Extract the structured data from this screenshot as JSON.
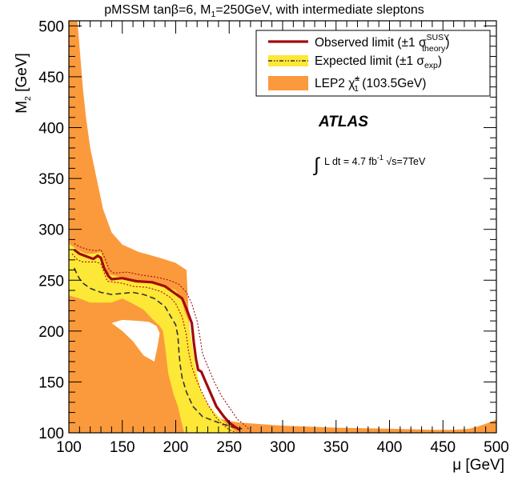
{
  "chart_data": {
    "type": "area",
    "title": "pMSSM tanβ=6, M",
    "title_sub": "1",
    "title_rest": "=250GeV, with intermediate sleptons",
    "xlabel": "μ [GeV]",
    "ylabel_main": "M",
    "ylabel_sub": "2",
    "ylabel_rest": " [GeV]",
    "xlim": [
      100,
      500
    ],
    "ylim": [
      100,
      505
    ],
    "x_ticks": [
      100,
      150,
      200,
      250,
      300,
      350,
      400,
      450,
      500
    ],
    "x_tick_labels": [
      "100",
      "150",
      "200",
      "250",
      "300",
      "350",
      "400",
      "450",
      "500"
    ],
    "y_ticks": [
      100,
      150,
      200,
      250,
      300,
      350,
      400,
      450,
      500
    ],
    "y_tick_labels": [
      "100",
      "150",
      "200",
      "250",
      "300",
      "350",
      "400",
      "450",
      "500"
    ],
    "legend_placement": "top-right",
    "legend": {
      "observed": {
        "text": "Observed limit (±1 σ",
        "sup": "SUSY",
        "sub": "theory",
        "close": ")"
      },
      "expected": {
        "text": "Expected limit (±1 σ",
        "sub": "exp",
        "close": ")"
      },
      "lep": {
        "text": "LEP2 ",
        "chi": "χ̃",
        "chi_sup": "±",
        "chi_sub": "1",
        "rest": " (103.5GeV)"
      }
    },
    "experiment": "ATLAS",
    "luminosity": {
      "integral": "∫",
      "text": "L dt = 4.7 fb",
      "sup": "-1",
      "sqrt_s": " √s=7TeV"
    },
    "colors": {
      "lep": "#fb9a3c",
      "expected_band": "#fde837",
      "observed": "#a30a0a",
      "expected_line": "#333333",
      "frame": "#000000"
    },
    "lep_excluded_region": [
      [
        100,
        505
      ],
      [
        108,
        505
      ],
      [
        110,
        480
      ],
      [
        113,
        440
      ],
      [
        116,
        410
      ],
      [
        120,
        380
      ],
      [
        126,
        350
      ],
      [
        132,
        320
      ],
      [
        140,
        297
      ],
      [
        150,
        285
      ],
      [
        165,
        278
      ],
      [
        185,
        272
      ],
      [
        200,
        267
      ],
      [
        210,
        260
      ],
      [
        212,
        220
      ],
      [
        215,
        170
      ],
      [
        222,
        120
      ],
      [
        248,
        112
      ],
      [
        260,
        110
      ],
      [
        300,
        107
      ],
      [
        350,
        105
      ],
      [
        400,
        104
      ],
      [
        440,
        103
      ],
      [
        460,
        103
      ],
      [
        475,
        104
      ],
      [
        485,
        107
      ],
      [
        493,
        110
      ],
      [
        500,
        113
      ],
      [
        500,
        100
      ],
      [
        100,
        100
      ]
    ],
    "lep_hole_region": [
      [
        100,
        232
      ],
      [
        125,
        228
      ],
      [
        135,
        221
      ],
      [
        150,
        208
      ],
      [
        162,
        193
      ],
      [
        180,
        172
      ],
      [
        192,
        162
      ],
      [
        195,
        148
      ],
      [
        194,
        125
      ],
      [
        192,
        100
      ],
      [
        100,
        100
      ]
    ],
    "expected_band_region": [
      [
        100,
        286
      ],
      [
        108,
        280
      ],
      [
        116,
        276
      ],
      [
        123,
        276
      ],
      [
        130,
        278
      ],
      [
        137,
        256
      ],
      [
        148,
        253
      ],
      [
        163,
        250
      ],
      [
        178,
        248
      ],
      [
        190,
        244
      ],
      [
        200,
        240
      ],
      [
        206,
        230
      ],
      [
        208,
        220
      ],
      [
        212,
        210
      ],
      [
        215,
        190
      ],
      [
        218,
        168
      ],
      [
        220,
        158
      ],
      [
        224,
        140
      ],
      [
        230,
        128
      ],
      [
        235,
        122
      ],
      [
        240,
        116
      ],
      [
        248,
        108
      ],
      [
        255,
        102
      ],
      [
        258,
        100
      ],
      [
        208,
        100
      ],
      [
        205,
        112
      ],
      [
        202,
        126
      ],
      [
        198,
        138
      ],
      [
        193,
        158
      ],
      [
        190,
        185
      ],
      [
        188,
        200
      ],
      [
        185,
        205
      ],
      [
        178,
        212
      ],
      [
        170,
        221
      ],
      [
        158,
        228
      ],
      [
        150,
        232
      ],
      [
        140,
        228
      ],
      [
        128,
        228
      ],
      [
        120,
        228
      ],
      [
        110,
        232
      ],
      [
        100,
        235
      ]
    ],
    "white_hole": [
      [
        140,
        208
      ],
      [
        150,
        211
      ],
      [
        165,
        210
      ],
      [
        175,
        209
      ],
      [
        182,
        205
      ],
      [
        185,
        198
      ],
      [
        183,
        185
      ],
      [
        180,
        170
      ],
      [
        170,
        176
      ],
      [
        160,
        190
      ],
      [
        150,
        200
      ]
    ],
    "observed_line": {
      "x": [
        105,
        110,
        115,
        120,
        123,
        127,
        130,
        133,
        137,
        140,
        150,
        163,
        178,
        190,
        198,
        206,
        210,
        215,
        217,
        219,
        221,
        224,
        228,
        233,
        238,
        245,
        250,
        255,
        260
      ],
      "y": [
        280,
        276,
        274,
        272,
        271,
        274,
        272,
        262,
        254,
        251,
        252,
        249,
        248,
        244,
        238,
        232,
        222,
        208,
        188,
        172,
        162,
        160,
        150,
        138,
        126,
        116,
        110,
        106,
        103
      ]
    },
    "observed_plus": {
      "x": [
        105,
        110,
        118,
        125,
        130,
        134,
        138,
        142,
        155,
        168,
        182,
        194,
        203,
        210,
        215,
        220,
        223,
        225,
        230,
        236,
        243,
        252,
        258,
        264,
        268
      ],
      "y": [
        286,
        283,
        280,
        279,
        280,
        271,
        260,
        257,
        258,
        255,
        253,
        250,
        246,
        238,
        227,
        210,
        192,
        178,
        165,
        150,
        136,
        122,
        113,
        108,
        104
      ]
    },
    "observed_minus": {
      "x": [
        103,
        108,
        113,
        120,
        126,
        130,
        136,
        150,
        160,
        173,
        186,
        195,
        200,
        206,
        210,
        212,
        215,
        219,
        224,
        230,
        237,
        244,
        250,
        257
      ],
      "y": [
        276,
        270,
        268,
        268,
        268,
        266,
        249,
        247,
        244,
        243,
        239,
        233,
        227,
        214,
        196,
        180,
        165,
        153,
        141,
        128,
        116,
        108,
        103,
        100
      ]
    },
    "expected_line": {
      "x": [
        105,
        108,
        112,
        120,
        130,
        140,
        150,
        160,
        170,
        180,
        190,
        195,
        200,
        202,
        203,
        204,
        206,
        210,
        216,
        225,
        240,
        255,
        262
      ],
      "y": [
        262,
        255,
        248,
        242,
        238,
        236,
        237,
        238,
        236,
        232,
        224,
        215,
        206,
        195,
        180,
        168,
        154,
        140,
        126,
        116,
        110,
        105,
        104
      ]
    }
  }
}
